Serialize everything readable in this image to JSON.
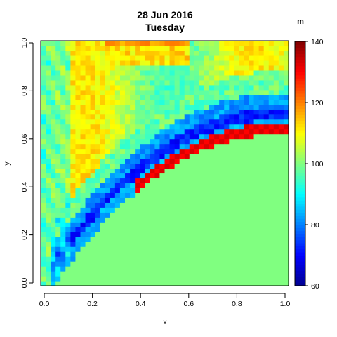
{
  "chart_data": {
    "type": "heatmap",
    "title": "28 Jun 2016",
    "subtitle": "Tuesday",
    "xlabel": "x",
    "ylabel": "y",
    "xlim": [
      0,
      1
    ],
    "ylim": [
      0,
      1
    ],
    "x_ticks": [
      "0.0",
      "0.2",
      "0.4",
      "0.6",
      "0.8",
      "1.0"
    ],
    "y_ticks": [
      "0.0",
      "0.2",
      "0.4",
      "0.6",
      "0.8",
      "1.0"
    ],
    "colorbar": {
      "unit": "m",
      "range": [
        60,
        140
      ],
      "ticks": [
        "60",
        "80",
        "100",
        "120",
        "140"
      ],
      "palette": [
        "#00008F",
        "#0000FF",
        "#0080FF",
        "#00FFFF",
        "#80FF80",
        "#FFFF00",
        "#FF8000",
        "#FF0000",
        "#800000"
      ]
    },
    "grid_size": 50,
    "constant_region_value": 100,
    "constant_region_color": "#80FF80",
    "ridge_values": [
      130,
      133
    ],
    "boundary_curve_note": "region below y ≈ 0.62·(1 − ((1−x)/0.95)^2.2) for x ≥ 0.05 is constant"
  }
}
